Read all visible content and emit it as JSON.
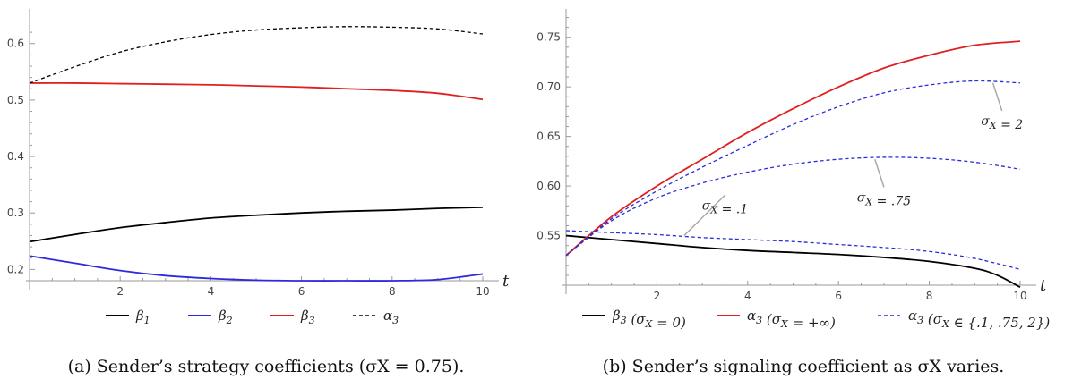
{
  "chart_data": [
    {
      "type": "line",
      "caption": "(a) Sender’s strategy coefficients (σX = 0.75).",
      "xlabel": "t",
      "xlim": [
        0,
        10
      ],
      "ylim": [
        0.18,
        0.655
      ],
      "xticks": [
        "2",
        "4",
        "6",
        "8",
        "10"
      ],
      "yticks": [
        "0.2",
        "0.3",
        "0.4",
        "0.5",
        "0.6"
      ],
      "grid": false,
      "legend_position": "bottom",
      "series": [
        {
          "name": "β1",
          "color": "#000000",
          "style": "solid",
          "x": [
            0,
            1,
            2,
            3,
            4,
            5,
            6,
            7,
            8,
            9,
            10
          ],
          "values": [
            0.249,
            0.262,
            0.274,
            0.283,
            0.291,
            0.296,
            0.3,
            0.303,
            0.305,
            0.308,
            0.31
          ]
        },
        {
          "name": "β2",
          "color": "#2b2bdb",
          "style": "solid",
          "x": [
            0,
            1,
            2,
            3,
            4,
            5,
            6,
            7,
            8,
            9,
            10
          ],
          "values": [
            0.224,
            0.211,
            0.198,
            0.189,
            0.184,
            0.181,
            0.18,
            0.18,
            0.18,
            0.182,
            0.192
          ]
        },
        {
          "name": "β3",
          "color": "#e02020",
          "style": "solid",
          "x": [
            0,
            1,
            2,
            3,
            4,
            5,
            6,
            7,
            8,
            9,
            10
          ],
          "values": [
            0.53,
            0.53,
            0.529,
            0.528,
            0.527,
            0.525,
            0.523,
            0.52,
            0.517,
            0.512,
            0.501
          ]
        },
        {
          "name": "α3",
          "color": "#000000",
          "style": "dashed",
          "x": [
            0,
            1,
            2,
            3,
            4,
            5,
            6,
            7,
            8,
            9,
            10
          ],
          "values": [
            0.53,
            0.559,
            0.585,
            0.603,
            0.616,
            0.624,
            0.628,
            0.63,
            0.629,
            0.626,
            0.617
          ]
        }
      ]
    },
    {
      "type": "line",
      "caption": "(b) Sender’s signaling coefficient as σX varies.",
      "xlabel": "t",
      "xlim": [
        0,
        10
      ],
      "ylim": [
        0.5,
        0.775
      ],
      "xticks": [
        "2",
        "4",
        "6",
        "8",
        "10"
      ],
      "yticks": [
        "0.55",
        "0.60",
        "0.65",
        "0.70",
        "0.75"
      ],
      "grid": false,
      "legend_position": "bottom",
      "series": [
        {
          "name": "β3 (σX = 0)",
          "color": "#000000",
          "style": "solid",
          "x": [
            0,
            1,
            2,
            3,
            4,
            5,
            6,
            7,
            8,
            9,
            9.5,
            10
          ],
          "values": [
            0.55,
            0.546,
            0.542,
            0.538,
            0.535,
            0.533,
            0.531,
            0.528,
            0.524,
            0.517,
            0.51,
            0.498
          ]
        },
        {
          "name": "α3 (σX = +∞)",
          "color": "#e02020",
          "style": "solid",
          "x": [
            0,
            1,
            2,
            3,
            4,
            5,
            6,
            7,
            8,
            9,
            10
          ],
          "values": [
            0.53,
            0.569,
            0.6,
            0.627,
            0.654,
            0.678,
            0.7,
            0.719,
            0.732,
            0.742,
            0.746
          ]
        },
        {
          "name": "α3 (σX ∈ {.1, .75, 2})",
          "color": "#2b2bdb",
          "style": "dashed",
          "x": [
            0,
            1,
            2,
            3,
            4,
            5,
            6,
            7,
            8,
            9,
            10
          ],
          "values": [
            0.53,
            0.567,
            0.595,
            0.619,
            0.641,
            0.662,
            0.68,
            0.694,
            0.702,
            0.706,
            0.704
          ]
        },
        {
          "name": "",
          "color": "#2b2bdb",
          "style": "dashed",
          "x": [
            0,
            1,
            2,
            3,
            4,
            5,
            6,
            7,
            8,
            9,
            10
          ],
          "values": [
            0.53,
            0.565,
            0.588,
            0.603,
            0.614,
            0.622,
            0.627,
            0.629,
            0.628,
            0.624,
            0.617
          ]
        },
        {
          "name": "",
          "color": "#2b2bdb",
          "style": "dashed",
          "x": [
            0,
            1,
            2,
            3,
            4,
            5,
            6,
            7,
            8,
            9,
            10
          ],
          "values": [
            0.555,
            0.553,
            0.551,
            0.548,
            0.546,
            0.544,
            0.541,
            0.538,
            0.534,
            0.527,
            0.516
          ]
        }
      ],
      "annotations": [
        {
          "text": "σX = 2",
          "at": [
            9.4,
            0.704
          ],
          "label_at": [
            9.6,
            0.665
          ]
        },
        {
          "text": "σX = .75",
          "at": [
            6.8,
            0.627
          ],
          "label_at": [
            7.0,
            0.588
          ]
        },
        {
          "text": "σX = .1",
          "at": [
            2.6,
            0.55
          ],
          "label_at": [
            3.5,
            0.58
          ]
        }
      ]
    }
  ]
}
